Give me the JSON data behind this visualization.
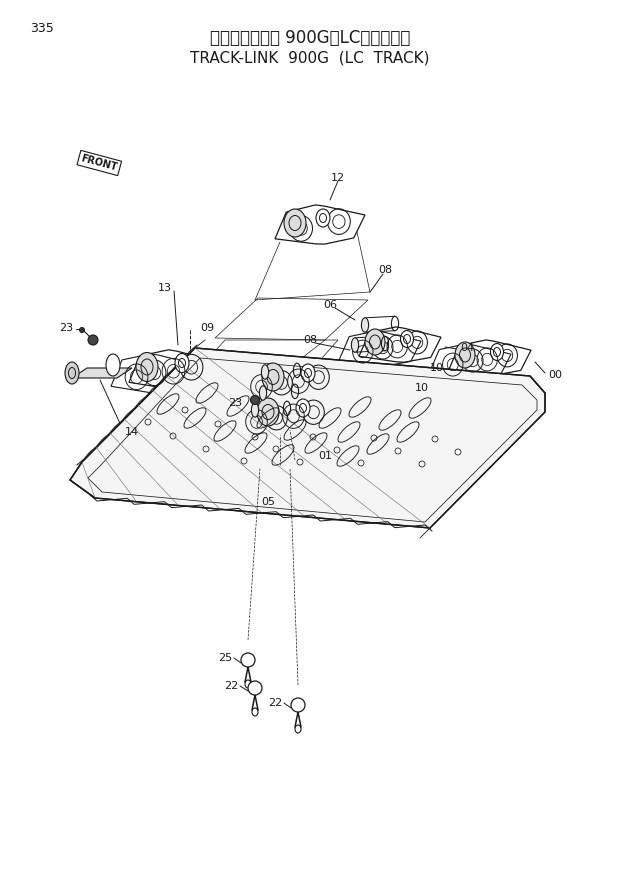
{
  "page_number": "335",
  "title_japanese": "トラックリンク 900G（LCトラック）",
  "title_english": "TRACK-LINK  900G  (LC  TRACK)",
  "bg": "#ffffff",
  "lc": "#1a1a1a"
}
